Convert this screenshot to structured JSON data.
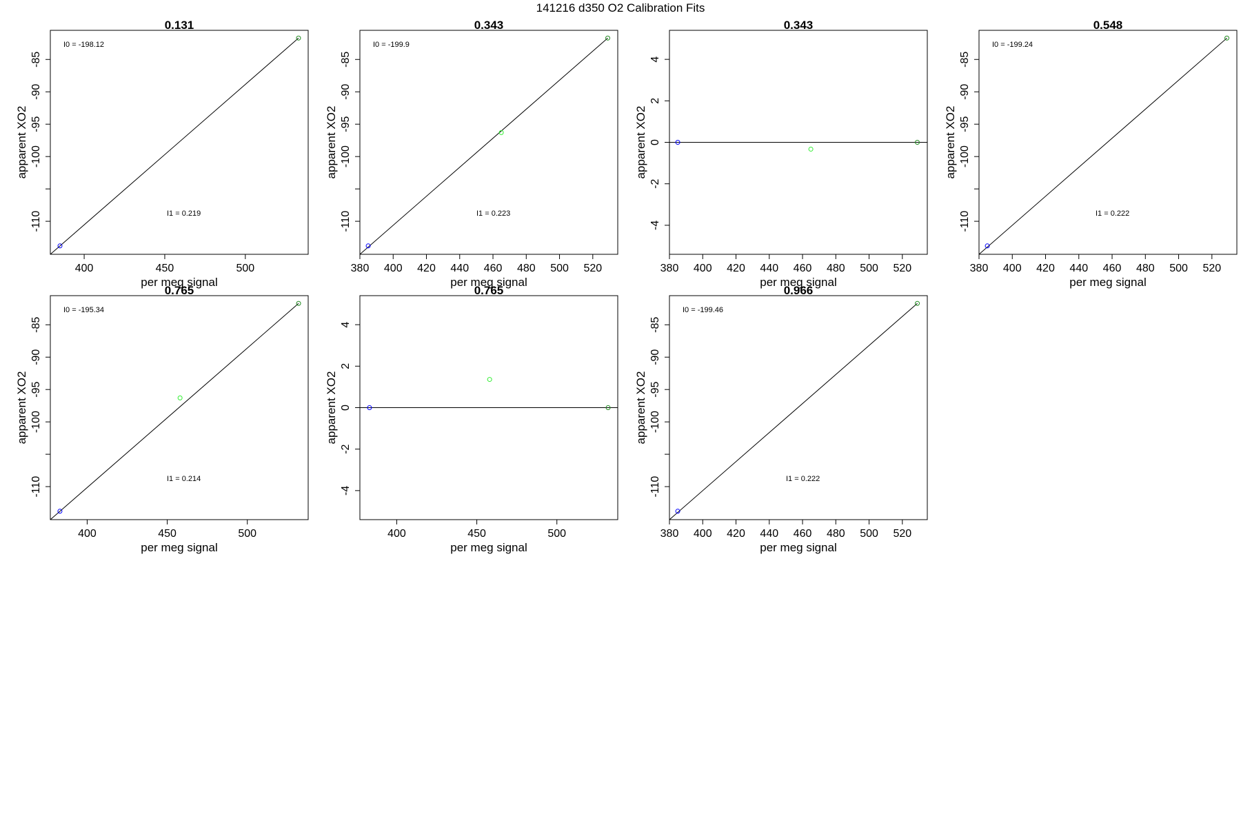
{
  "page": {
    "title": "141216   d350   O2 Calibration Fits"
  },
  "colors": {
    "blue": "#0000ff",
    "green_light": "#33ee33",
    "green_dark": "#228B22",
    "line": "#000000"
  },
  "chart_data": [
    {
      "type": "scatter",
      "title": "0.131",
      "xlabel": "per meg signal",
      "ylabel": "apparent XO2",
      "xlim": [
        379,
        539
      ],
      "ylim": [
        -115.1,
        -80.5
      ],
      "xticks": [
        400,
        450,
        500
      ],
      "yticks": [
        -110,
        -105,
        -100,
        -95,
        -90,
        -85
      ],
      "ytick_labels": [
        "-110",
        "",
        "-100",
        "-95",
        "-90",
        "-85"
      ],
      "points": [
        {
          "x": 385,
          "y": -113.8,
          "color": "blue"
        },
        {
          "x": 533,
          "y": -81.7,
          "color": "green_dark"
        }
      ],
      "fit_line": {
        "x1": 379,
        "y1": -115.1,
        "x2": 533,
        "y2": -81.7
      },
      "annotations": [
        {
          "label": "I0 =",
          "value": "-198.12",
          "position": "top-left"
        },
        {
          "label": "I1 =",
          "value": "0.219",
          "position": "middle-bottom"
        }
      ]
    },
    {
      "type": "scatter",
      "title": "0.343",
      "xlabel": "per meg signal",
      "ylabel": "apparent XO2",
      "xlim": [
        380,
        535
      ],
      "ylim": [
        -115.1,
        -80.5
      ],
      "xticks": [
        380,
        400,
        420,
        440,
        460,
        480,
        500,
        520
      ],
      "yticks": [
        -110,
        -105,
        -100,
        -95,
        -90,
        -85
      ],
      "ytick_labels": [
        "-110",
        "",
        "-100",
        "-95",
        "-90",
        "-85"
      ],
      "points": [
        {
          "x": 385,
          "y": -113.8,
          "color": "blue"
        },
        {
          "x": 465,
          "y": -96.3,
          "color": "green_light"
        },
        {
          "x": 529,
          "y": -81.7,
          "color": "green_dark"
        }
      ],
      "fit_line": {
        "x1": 380,
        "y1": -115.1,
        "x2": 529,
        "y2": -81.7
      },
      "annotations": [
        {
          "label": "I0 =",
          "value": "-199.9",
          "position": "top-left"
        },
        {
          "label": "I1 =",
          "value": "0.223",
          "position": "middle-bottom"
        }
      ]
    },
    {
      "type": "scatter",
      "title": "0.343",
      "xlabel": "per meg signal",
      "ylabel": "apparent XO2",
      "xlim": [
        380,
        535
      ],
      "ylim": [
        -5.4,
        5.4
      ],
      "xticks": [
        380,
        400,
        420,
        440,
        460,
        480,
        500,
        520
      ],
      "yticks": [
        -4,
        -2,
        0,
        2,
        4
      ],
      "ytick_labels": [
        "-4",
        "-2",
        "0",
        "2",
        "4"
      ],
      "points": [
        {
          "x": 385,
          "y": 0,
          "color": "blue"
        },
        {
          "x": 465,
          "y": -0.33,
          "color": "green_light"
        },
        {
          "x": 529,
          "y": 0,
          "color": "green_dark"
        }
      ],
      "fit_line": {
        "x1": 380,
        "y1": 0,
        "x2": 535,
        "y2": 0
      },
      "annotations": []
    },
    {
      "type": "scatter",
      "title": "0.548",
      "xlabel": "per meg signal",
      "ylabel": "apparent XO2",
      "xlim": [
        380,
        535
      ],
      "ylim": [
        -115.1,
        -80.5
      ],
      "xticks": [
        380,
        400,
        420,
        440,
        460,
        480,
        500,
        520
      ],
      "yticks": [
        -110,
        -105,
        -100,
        -95,
        -90,
        -85
      ],
      "ytick_labels": [
        "-110",
        "",
        "-100",
        "-95",
        "-90",
        "-85"
      ],
      "points": [
        {
          "x": 385,
          "y": -113.8,
          "color": "blue"
        },
        {
          "x": 529,
          "y": -81.7,
          "color": "green_dark"
        }
      ],
      "fit_line": {
        "x1": 380,
        "y1": -115.1,
        "x2": 529,
        "y2": -81.7
      },
      "annotations": [
        {
          "label": "I0 =",
          "value": "-199.24",
          "position": "top-left"
        },
        {
          "label": "I1 =",
          "value": "0.222",
          "position": "middle-bottom"
        }
      ]
    },
    {
      "type": "scatter",
      "title": "0.765",
      "xlabel": "per meg signal",
      "ylabel": "apparent XO2",
      "xlim": [
        377,
        538
      ],
      "ylim": [
        -115.1,
        -80.5
      ],
      "xticks": [
        400,
        450,
        500
      ],
      "yticks": [
        -110,
        -105,
        -100,
        -95,
        -90,
        -85
      ],
      "ytick_labels": [
        "-110",
        "",
        "-100",
        "-95",
        "-90",
        "-85"
      ],
      "points": [
        {
          "x": 383,
          "y": -113.8,
          "color": "blue"
        },
        {
          "x": 458,
          "y": -96.3,
          "color": "green_light"
        },
        {
          "x": 532,
          "y": -81.7,
          "color": "green_dark"
        }
      ],
      "fit_line": {
        "x1": 377,
        "y1": -115.1,
        "x2": 532,
        "y2": -81.7
      },
      "annotations": [
        {
          "label": "I0 =",
          "value": "-195.34",
          "position": "top-left"
        },
        {
          "label": "I1 =",
          "value": "0.214",
          "position": "middle-bottom"
        }
      ]
    },
    {
      "type": "scatter",
      "title": "0.765",
      "xlabel": "per meg signal",
      "ylabel": "apparent XO2",
      "xlim": [
        377,
        538
      ],
      "ylim": [
        -5.4,
        5.4
      ],
      "xticks": [
        400,
        450,
        500
      ],
      "yticks": [
        -4,
        -2,
        0,
        2,
        4
      ],
      "ytick_labels": [
        "-4",
        "-2",
        "0",
        "2",
        "4"
      ],
      "points": [
        {
          "x": 383,
          "y": 0,
          "color": "blue"
        },
        {
          "x": 458,
          "y": 1.36,
          "color": "green_light"
        },
        {
          "x": 532,
          "y": 0,
          "color": "green_dark"
        }
      ],
      "fit_line": {
        "x1": 377,
        "y1": 0,
        "x2": 538,
        "y2": 0
      },
      "annotations": []
    },
    {
      "type": "scatter",
      "title": "0.966",
      "xlabel": "per meg signal",
      "ylabel": "apparent XO2",
      "xlim": [
        380,
        535
      ],
      "ylim": [
        -115.1,
        -80.5
      ],
      "xticks": [
        380,
        400,
        420,
        440,
        460,
        480,
        500,
        520
      ],
      "yticks": [
        -110,
        -105,
        -100,
        -95,
        -90,
        -85
      ],
      "ytick_labels": [
        "-110",
        "",
        "-100",
        "-95",
        "-90",
        "-85"
      ],
      "points": [
        {
          "x": 385,
          "y": -113.8,
          "color": "blue"
        },
        {
          "x": 529,
          "y": -81.7,
          "color": "green_dark"
        }
      ],
      "fit_line": {
        "x1": 380,
        "y1": -115.1,
        "x2": 529,
        "y2": -81.7
      },
      "annotations": [
        {
          "label": "I0 =",
          "value": "-199.46",
          "position": "top-left"
        },
        {
          "label": "I1 =",
          "value": "0.222",
          "position": "middle-bottom"
        }
      ]
    }
  ]
}
